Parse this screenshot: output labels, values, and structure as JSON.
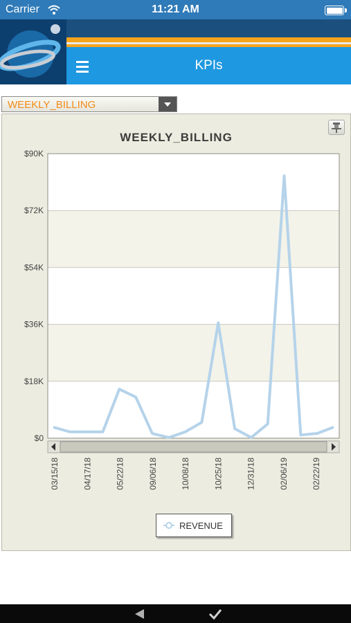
{
  "status_bar": {
    "carrier": "Carrier",
    "time": "11:21 AM",
    "battery_level": 1.0
  },
  "header": {
    "title": "KPIs",
    "menu_icon": "hamburger-menu-icon",
    "logo_icon": "company-globe-logo"
  },
  "kpi_selector": {
    "selected": "WEEKLY_BILLING"
  },
  "colors": {
    "accent_blue": "#1e98e0",
    "orange": "#f28c18",
    "series_line": "#b5d3ea"
  },
  "chart_data": {
    "type": "line",
    "title": "WEEKLY_BILLING",
    "y_ticks": [
      "$0",
      "$18K",
      "$36K",
      "$54K",
      "$72K",
      "$90K"
    ],
    "ylim": [
      0,
      90000
    ],
    "x_tick_labels": [
      "03/15/18",
      "04/17/18",
      "05/22/18",
      "09/06/18",
      "10/08/18",
      "10/25/18",
      "12/31/18",
      "02/06/19",
      "02/22/19"
    ],
    "series": [
      {
        "name": "REVENUE",
        "values": [
          3500,
          2000,
          2000,
          2000,
          15500,
          13000,
          1500,
          200,
          2000,
          5000,
          36500,
          3000,
          200,
          4500,
          83000,
          1000,
          1500,
          3500
        ]
      }
    ],
    "legend": "bottom-center",
    "grid": true
  },
  "footer": {
    "back_icon": "back-triangle-icon",
    "confirm_icon": "checkmark-icon"
  }
}
